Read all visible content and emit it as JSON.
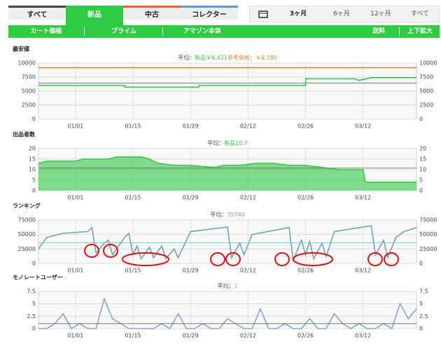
{
  "tabs": [
    "すべて",
    "新品",
    "中古",
    "コレクター"
  ],
  "ranges": [
    "3ヶ月",
    "6ヶ月",
    "12ヶ月",
    "すべて"
  ],
  "filters": [
    "カート価格",
    "プライム",
    "アマゾン本体",
    "送料",
    "上下拡大"
  ],
  "chart_data": [
    {
      "type": "line",
      "title": "最安値",
      "subtitle_prefix": "平均：",
      "average": {
        "value": 6421,
        "label": "新品￥6,421"
      },
      "reference_label": "参考価格：￥9,180",
      "xlim": [
        -9,
        83
      ],
      "xticks": [
        {
          "value": 0,
          "label": "01/01"
        },
        {
          "value": 14,
          "label": "01/15"
        },
        {
          "value": 28,
          "label": "01/29"
        },
        {
          "value": 42,
          "label": "02/12"
        },
        {
          "value": 56,
          "label": "02/26"
        },
        {
          "value": 70,
          "label": "03/12"
        }
      ],
      "ylim": [
        0,
        10000
      ],
      "yticks": [
        0,
        2500,
        5000,
        7500,
        10000
      ],
      "grid": true,
      "series": [
        {
          "color": "#e08a2a",
          "x": [
            -9,
            83
          ],
          "values": [
            9180,
            9180
          ]
        },
        {
          "color": "#2ecc40",
          "x": [
            -9,
            12,
            12,
            30,
            30,
            56,
            56,
            68,
            69,
            72,
            83
          ],
          "values": [
            6000,
            6000,
            5700,
            5700,
            6000,
            6000,
            7200,
            7200,
            6900,
            7400,
            7400
          ]
        }
      ]
    },
    {
      "type": "area",
      "title": "出品者数",
      "subtitle_prefix": "平均：",
      "average": {
        "value": 10.7,
        "label": "新品10.7"
      },
      "xlim": [
        -9,
        83
      ],
      "xticks": [
        {
          "value": 0,
          "label": "01/01"
        },
        {
          "value": 14,
          "label": "01/15"
        },
        {
          "value": 28,
          "label": "01/29"
        },
        {
          "value": 42,
          "label": "02/12"
        },
        {
          "value": 56,
          "label": "02/26"
        },
        {
          "value": 70,
          "label": "03/12"
        }
      ],
      "ylim": [
        0,
        20
      ],
      "yticks": [
        0,
        5,
        10,
        15,
        20
      ],
      "grid": true,
      "series": [
        {
          "color": "#2ecc40",
          "x": [
            -9,
            -7,
            0,
            2,
            8,
            10,
            16,
            18,
            20,
            24,
            28,
            34,
            36,
            40,
            44,
            48,
            52,
            56,
            60,
            64,
            70,
            70.5,
            83
          ],
          "values": [
            13,
            14,
            14,
            15,
            15,
            16,
            16,
            15,
            13,
            12,
            12,
            11,
            12,
            12,
            13,
            13,
            12,
            12,
            11,
            10,
            10,
            4,
            4
          ]
        }
      ]
    },
    {
      "type": "line",
      "title": "ランキング",
      "subtitle_prefix": "平均：",
      "average": {
        "value": 35740,
        "label": "35740"
      },
      "xlim": [
        -9,
        83
      ],
      "xticks": [
        {
          "value": 0,
          "label": "01/01"
        },
        {
          "value": 14,
          "label": "01/15"
        },
        {
          "value": 28,
          "label": "01/29"
        },
        {
          "value": 42,
          "label": "02/12"
        },
        {
          "value": 56,
          "label": "02/26"
        },
        {
          "value": 70,
          "label": "03/12"
        }
      ],
      "ylim": [
        0,
        75000
      ],
      "yticks": [
        0,
        25000,
        50000,
        75000
      ],
      "grid": true,
      "series": [
        {
          "color": "#6fa3b8",
          "x": [
            -9,
            -7,
            -3,
            3,
            4,
            5,
            7,
            8,
            9,
            12,
            13,
            14,
            15,
            16,
            18,
            19,
            21,
            22,
            24,
            25,
            28,
            36,
            37,
            38,
            40,
            41,
            43,
            52,
            53,
            55,
            56,
            57,
            58,
            60,
            61,
            63,
            72,
            73,
            75,
            76,
            78,
            80,
            83
          ],
          "values": [
            25000,
            45000,
            52000,
            55000,
            62000,
            18000,
            35000,
            40000,
            15000,
            45000,
            52000,
            15000,
            30000,
            8000,
            28000,
            10000,
            30000,
            8000,
            25000,
            10000,
            55000,
            62000,
            63000,
            10000,
            35000,
            15000,
            50000,
            62000,
            5000,
            40000,
            15000,
            38000,
            8000,
            35000,
            12000,
            55000,
            65000,
            15000,
            40000,
            10000,
            45000,
            55000,
            62000
          ]
        }
      ]
    },
    {
      "type": "line",
      "title": "モノレートユーザー",
      "subtitle_prefix": "平均：",
      "average": {
        "value": 1,
        "label": "1"
      },
      "xlim": [
        -9,
        83
      ],
      "xticks": [
        {
          "value": 0,
          "label": "01/01"
        },
        {
          "value": 14,
          "label": "01/15"
        },
        {
          "value": 28,
          "label": "01/29"
        },
        {
          "value": 42,
          "label": "02/12"
        },
        {
          "value": 56,
          "label": "02/26"
        },
        {
          "value": 70,
          "label": "03/12"
        }
      ],
      "ylim": [
        0,
        7.5
      ],
      "yticks": [
        0,
        2.5,
        5,
        7.5
      ],
      "grid": true,
      "series": [
        {
          "color": "#7fa8d8",
          "x": [
            -9,
            -7,
            -5,
            -3,
            -1,
            1,
            3,
            5,
            7,
            9,
            11,
            13,
            15,
            17,
            19,
            21,
            23,
            25,
            27,
            29,
            31,
            33,
            35,
            37,
            39,
            41,
            43,
            45,
            47,
            49,
            51,
            53,
            55,
            57,
            59,
            61,
            63,
            65,
            67,
            69,
            71,
            73,
            75,
            77,
            79,
            81,
            83
          ],
          "values": [
            0,
            0,
            1,
            3,
            0,
            1,
            0,
            0,
            6,
            2,
            1,
            0,
            0,
            0,
            0,
            1,
            0,
            3,
            0,
            0,
            1,
            0,
            0,
            2,
            1,
            0,
            0,
            4,
            0,
            0,
            1,
            0,
            0,
            2,
            0,
            0,
            3,
            1,
            0,
            1,
            0,
            0,
            1,
            0,
            5,
            2,
            4
          ]
        }
      ]
    }
  ]
}
